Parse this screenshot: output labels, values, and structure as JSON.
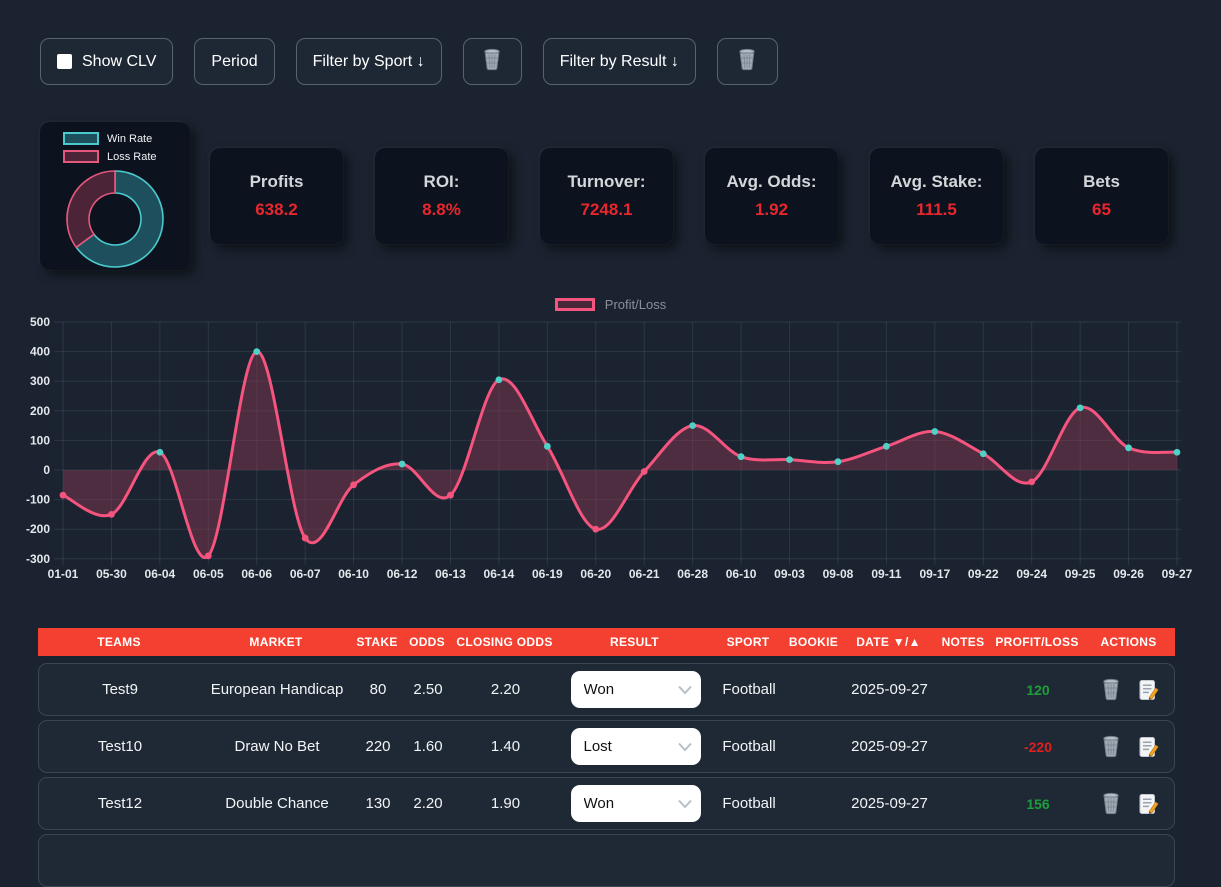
{
  "toolbar": {
    "show_clv_label": "Show CLV",
    "period_label": "Period",
    "filter_sport_label": "Filter by Sport ↓",
    "filter_result_label": "Filter by Result ↓"
  },
  "donut": {
    "legend": [
      "Win Rate",
      "Loss Rate"
    ],
    "win_rate_pct": 65,
    "loss_rate_pct": 35
  },
  "stats": [
    {
      "label": "Profits",
      "value": "638.2"
    },
    {
      "label": "ROI:",
      "value": "8.8%"
    },
    {
      "label": "Turnover:",
      "value": "7248.1"
    },
    {
      "label": "Avg. Odds:",
      "value": "1.92"
    },
    {
      "label": "Avg. Stake:",
      "value": "111.5"
    },
    {
      "label": "Bets",
      "value": "65"
    }
  ],
  "chart_data": {
    "type": "line",
    "legend_position": "top",
    "grid": true,
    "x": [
      "01-01",
      "05-30",
      "06-04",
      "06-05",
      "06-06",
      "06-07",
      "06-10",
      "06-12",
      "06-13",
      "06-14",
      "06-19",
      "06-20",
      "06-21",
      "06-28",
      "06-10",
      "09-03",
      "09-08",
      "09-11",
      "09-17",
      "09-22",
      "09-24",
      "09-25",
      "09-26",
      "09-27"
    ],
    "series": [
      {
        "name": "Profit/Loss",
        "values": [
          -85,
          -150,
          60,
          -290,
          400,
          -230,
          -50,
          20,
          -85,
          305,
          80,
          -200,
          -5,
          150,
          45,
          35,
          28,
          80,
          130,
          55,
          -40,
          210,
          75,
          60
        ]
      }
    ],
    "ylim": [
      -300,
      500
    ],
    "ytick_step": 100
  },
  "table": {
    "headers": [
      "TEAMS",
      "MARKET",
      "STAKE",
      "ODDS",
      "CLOSING ODDS",
      "RESULT",
      "SPORT",
      "BOOKIE",
      "DATE ▼/▲",
      "NOTES",
      "PROFIT/LOSS",
      "ACTIONS"
    ],
    "result_options": [
      "Won",
      "Lost"
    ],
    "rows": [
      {
        "teams": "Test9",
        "market": "European Handicap",
        "stake": "80",
        "odds": "2.50",
        "closing_odds": "2.20",
        "result": "Won",
        "sport": "Football",
        "bookie": "",
        "date": "2025-09-27",
        "notes": "",
        "profit_loss": "120"
      },
      {
        "teams": "Test10",
        "market": "Draw No Bet",
        "stake": "220",
        "odds": "1.60",
        "closing_odds": "1.40",
        "result": "Lost",
        "sport": "Football",
        "bookie": "",
        "date": "2025-09-27",
        "notes": "",
        "profit_loss": "-220"
      },
      {
        "teams": "Test12",
        "market": "Double Chance",
        "stake": "130",
        "odds": "2.20",
        "closing_odds": "1.90",
        "result": "Won",
        "sport": "Football",
        "bookie": "",
        "date": "2025-09-27",
        "notes": "",
        "profit_loss": "156"
      }
    ]
  },
  "colors": {
    "header_red": "#f44031",
    "stat_value_red": "#e8262d",
    "profit_green": "#1d9e3a",
    "loss_red": "#e01f1f",
    "line_pink": "#f4547e",
    "dot_teal": "#4fd1c5",
    "area_fill": "rgba(139,58,85,0.45)",
    "grid_line": "rgba(148,160,180,0.16)",
    "axis_text": "#e4e8ec",
    "donut_win_fill": "#1d505c",
    "donut_win_stroke": "#4cc9ce",
    "donut_loss_fill": "#4b2437",
    "donut_loss_stroke": "#e4587c"
  }
}
